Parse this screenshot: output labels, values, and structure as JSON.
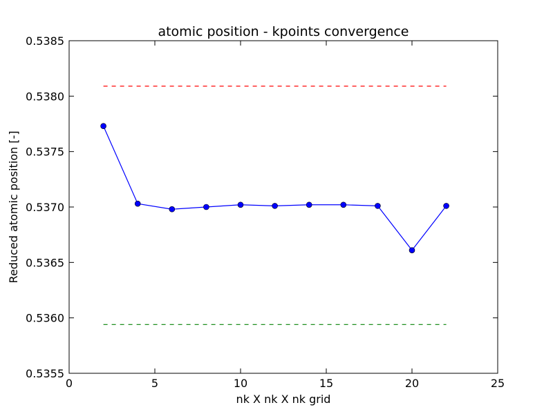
{
  "chart_data": {
    "type": "line",
    "title": "atomic position - kpoints convergence",
    "xlabel": "nk X nk X nk grid",
    "ylabel": "Reduced atomic position [-]",
    "xlim": [
      0,
      25
    ],
    "ylim": [
      0.5355,
      0.5385
    ],
    "x_ticks": [
      "0",
      "5",
      "10",
      "15",
      "20",
      "25"
    ],
    "y_ticks": [
      "0.5355",
      "0.5360",
      "0.5365",
      "0.5370",
      "0.5375",
      "0.5380",
      "0.5385"
    ],
    "grid": false,
    "series": [
      {
        "color": "#0000ff",
        "marker": "circle",
        "x": [
          2,
          4,
          6,
          8,
          10,
          12,
          14,
          16,
          18,
          20,
          22
        ],
        "y": [
          0.53773,
          0.53703,
          0.53698,
          0.537,
          0.53702,
          0.53701,
          0.53702,
          0.53702,
          0.53701,
          0.53661,
          0.53701
        ]
      },
      {
        "color": "#ff0000",
        "style": "dashed",
        "x": [
          2,
          22
        ],
        "y": [
          0.53809,
          0.53809
        ]
      },
      {
        "color": "#008000",
        "style": "dashed",
        "x": [
          2,
          22
        ],
        "y": [
          0.53594,
          0.53594
        ]
      }
    ]
  }
}
